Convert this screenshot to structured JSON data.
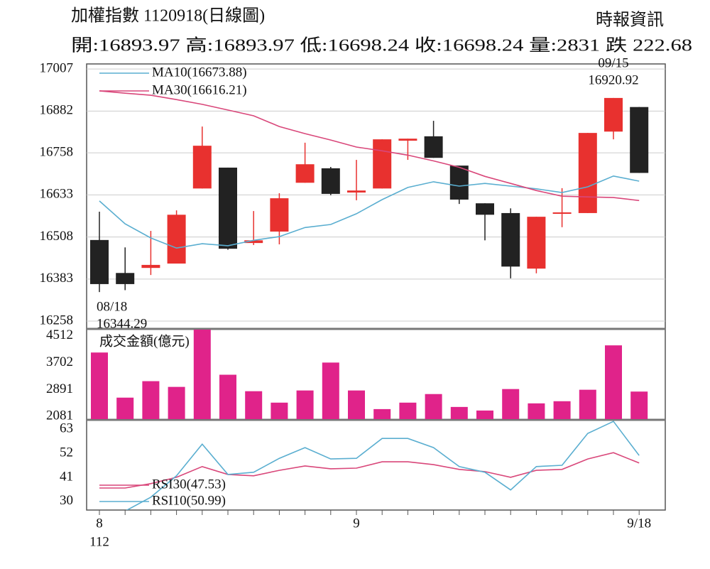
{
  "chart_data": [
    {
      "type": "candlestick",
      "title": "加權指數 1120918(日線圖)",
      "source": "時報資訊",
      "subtitle": "開:16893.97 高:16893.97 低:16698.24 收:16698.24 量:2831 跌 222.68",
      "categories": [
        "8",
        null,
        null,
        null,
        null,
        null,
        null,
        null,
        null,
        null,
        "9",
        null,
        null,
        null,
        null,
        null,
        null,
        null,
        null,
        null,
        null,
        "9/18"
      ],
      "year_label": "112",
      "open": [
        16499,
        16401,
        16416,
        16429,
        16652,
        16714,
        16490,
        16524,
        16669,
        16712,
        16640,
        16652,
        16794,
        16807,
        16720,
        16608,
        16579,
        16414,
        16577,
        16579,
        16821,
        16893.97
      ],
      "high": [
        16583,
        16477,
        16526,
        16587,
        16836,
        16714,
        16585,
        16638,
        16788,
        16716,
        16737,
        16798,
        16800,
        16853,
        16720,
        16608,
        16593,
        16568,
        16653,
        16817,
        16920.92,
        16893.97
      ],
      "low": [
        16344.29,
        16350,
        16395,
        16429,
        16652,
        16470,
        16484,
        16486,
        16669,
        16632,
        16617,
        16652,
        16737,
        16743,
        16606,
        16498,
        16385,
        16400,
        16537,
        16579,
        16798,
        16698.24
      ],
      "close": [
        16368,
        16368,
        16425,
        16574,
        16779,
        16473,
        16498,
        16623,
        16724,
        16636,
        16646,
        16798,
        16800,
        16743,
        16619,
        16574,
        16420,
        16568,
        16581,
        16817,
        16920.92,
        16698.24
      ],
      "up_color": "#e8312f",
      "down_color": "#222222",
      "lines": [
        {
          "name": "MA10(16673.88)",
          "color": "#5aaed0",
          "values": [
            16615,
            16547,
            16505,
            16475,
            16488,
            16482,
            16498,
            16509,
            16536,
            16545,
            16577,
            16619,
            16655,
            16672,
            16659,
            16667,
            16659,
            16651,
            16640,
            16657,
            16689,
            16673.88
          ]
        },
        {
          "name": "MA30(16616.21)",
          "color": "#d9477a",
          "values": [
            16942,
            16935,
            16929,
            16916,
            16902,
            16885,
            16868,
            16836,
            16815,
            16796,
            16775,
            16764,
            16751,
            16734,
            16715,
            16688,
            16667,
            16646,
            16629,
            16627,
            16625,
            16616.21
          ]
        }
      ],
      "high_label": [
        "09/15",
        "16920.92"
      ],
      "low_label": [
        "08/18",
        "16344.29"
      ],
      "ylim": [
        16237,
        17022
      ],
      "yticks": [
        17007,
        16882,
        16758,
        16633,
        16508,
        16383,
        16258
      ],
      "grid": true
    },
    {
      "type": "bar",
      "y_label": "成交金額(億元)",
      "values": [
        4009,
        2648,
        3145,
        2972,
        4700,
        3339,
        2842,
        2497,
        2864,
        3706,
        2864,
        2302,
        2497,
        2756,
        2367,
        2259,
        2907,
        2475,
        2540,
        2886,
        4225,
        2831
      ],
      "color": "#e0238a",
      "ylim": [
        2000,
        4700
      ],
      "yticks": [
        4512,
        3702,
        2891,
        2081
      ],
      "grid": false
    },
    {
      "type": "line",
      "series": [
        {
          "name": "RSI30(47.53)",
          "color": "#d9477a",
          "values": [
            36.1,
            36.1,
            38.1,
            41.0,
            45.9,
            42.3,
            41.7,
            44.2,
            46.2,
            44.9,
            45.2,
            48.1,
            48.1,
            46.8,
            44.6,
            43.6,
            41.0,
            44.2,
            44.6,
            49.4,
            52.3,
            47.53
          ]
        },
        {
          "name": "RSI10(50.99)",
          "color": "#5aaed0",
          "values": [
            24,
            25.5,
            31.9,
            41.7,
            56.2,
            42.3,
            43.3,
            49.7,
            54.6,
            49.4,
            49.7,
            58.8,
            58.8,
            54.6,
            45.9,
            43.3,
            35.2,
            45.9,
            46.5,
            61.1,
            66.6,
            50.99
          ]
        }
      ],
      "ylim": [
        26,
        67
      ],
      "yticks": [
        63,
        52,
        41,
        30
      ],
      "grid": false
    }
  ]
}
